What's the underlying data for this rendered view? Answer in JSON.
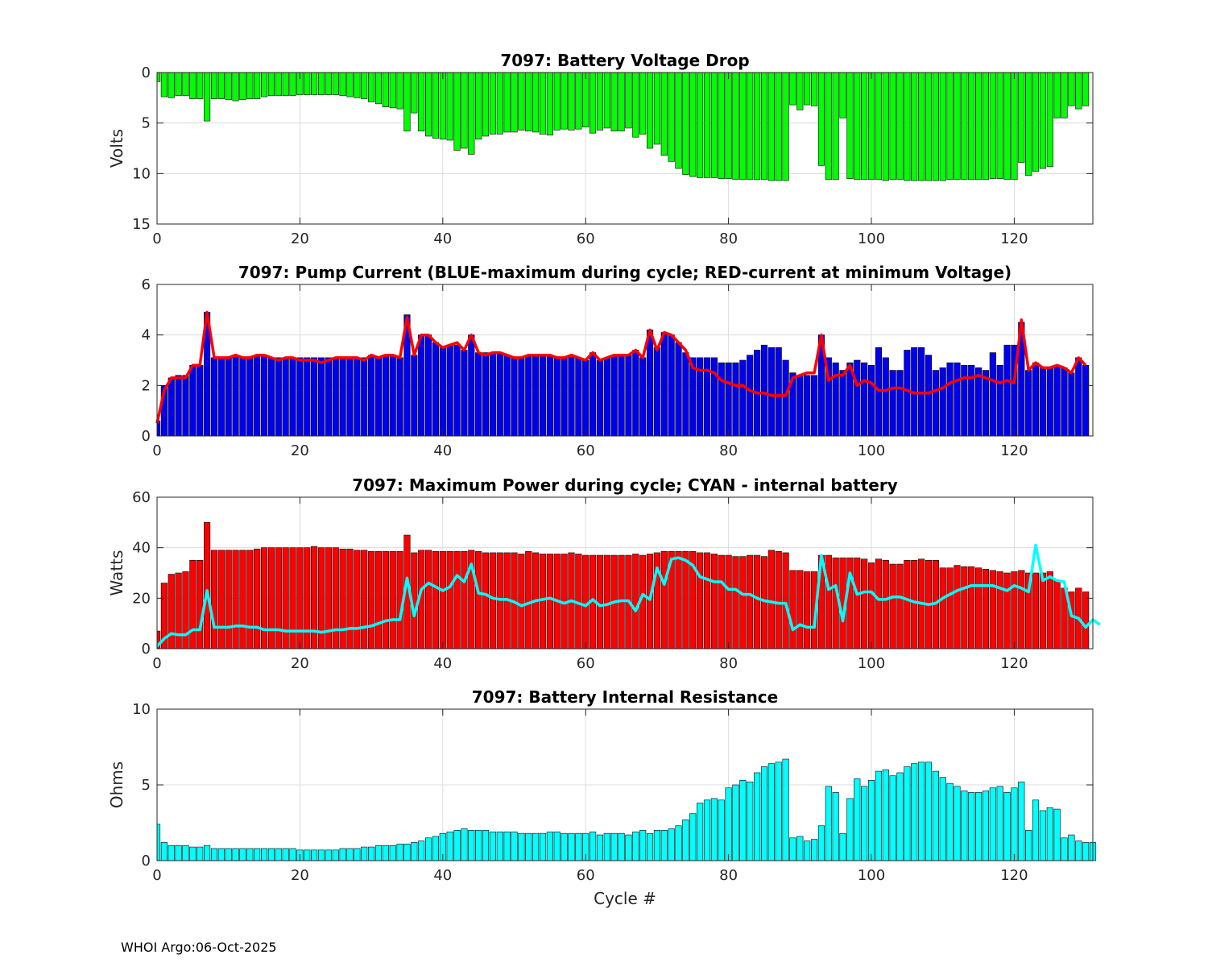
{
  "footer": "WHOI Argo:06-Oct-2025",
  "chart_data": [
    {
      "type": "bar",
      "title": "7097: Battery Voltage Drop",
      "xlabel": "",
      "ylabel": "Volts",
      "xlim": [
        0,
        131
      ],
      "ylim": [
        0,
        15
      ],
      "y_reversed": true,
      "xticks": [
        0,
        20,
        40,
        60,
        80,
        100,
        120
      ],
      "yticks": [
        0,
        5,
        10,
        15
      ],
      "grid": true,
      "colors": {
        "bar": "#00ff00"
      },
      "series": [
        {
          "values": [
            0.9,
            2.4,
            2.5,
            2.3,
            2.3,
            2.6,
            2.6,
            4.8,
            2.6,
            2.6,
            2.7,
            2.8,
            2.7,
            2.6,
            2.6,
            2.4,
            2.3,
            2.3,
            2.3,
            2.3,
            2.2,
            2.2,
            2.2,
            2.2,
            2.2,
            2.2,
            2.3,
            2.4,
            2.5,
            2.6,
            2.9,
            3.1,
            3.4,
            3.5,
            3.6,
            5.8,
            4.0,
            5.8,
            6.3,
            6.5,
            6.6,
            6.7,
            7.7,
            7.5,
            8.1,
            6.6,
            6.3,
            6.1,
            6.1,
            5.9,
            5.9,
            5.7,
            5.8,
            5.9,
            6.1,
            6.2,
            5.7,
            5.6,
            5.7,
            5.6,
            5.4,
            6.0,
            5.7,
            5.5,
            5.8,
            5.8,
            5.5,
            6.4,
            6.1,
            7.5,
            7.1,
            8.2,
            8.8,
            9.5,
            10.1,
            10.3,
            10.4,
            10.4,
            10.4,
            10.5,
            10.5,
            10.6,
            10.6,
            10.6,
            10.6,
            10.6,
            10.7,
            10.7,
            10.7,
            3.2,
            3.7,
            3.2,
            3.3,
            9.2,
            10.6,
            10.6,
            4.5,
            10.5,
            10.6,
            10.6,
            10.6,
            10.6,
            10.7,
            10.6,
            10.6,
            10.7,
            10.7,
            10.7,
            10.7,
            10.7,
            10.7,
            10.6,
            10.6,
            10.6,
            10.6,
            10.6,
            10.6,
            10.5,
            10.5,
            10.6,
            10.6,
            8.9,
            10.2,
            9.8,
            9.5,
            9.3,
            4.5,
            4.5,
            3.3,
            3.6,
            3.3
          ]
        }
      ]
    },
    {
      "type": "bar",
      "title": "7097: Pump Current (BLUE-maximum during cycle; RED-current at minimum Voltage)",
      "xlabel": "",
      "ylabel": "",
      "xlim": [
        0,
        131
      ],
      "ylim": [
        0,
        6
      ],
      "xticks": [
        0,
        20,
        40,
        60,
        80,
        100,
        120
      ],
      "yticks": [
        0,
        2,
        4,
        6
      ],
      "grid": true,
      "colors": {
        "bar": "#0000ee",
        "line": "#ff0000"
      },
      "series": [
        {
          "values": [
            0.6,
            2.0,
            2.3,
            2.4,
            2.4,
            2.8,
            2.8,
            4.9,
            3.1,
            3.1,
            3.1,
            3.2,
            3.1,
            3.1,
            3.2,
            3.2,
            3.1,
            3.1,
            3.1,
            3.1,
            3.1,
            3.1,
            3.1,
            3.1,
            3.1,
            3.1,
            3.1,
            3.1,
            3.1,
            3.1,
            3.2,
            3.1,
            3.2,
            3.2,
            3.1,
            4.8,
            3.2,
            4.0,
            4.0,
            3.7,
            3.5,
            3.6,
            3.6,
            3.4,
            4.0,
            3.3,
            3.3,
            3.3,
            3.3,
            3.2,
            3.1,
            3.1,
            3.2,
            3.2,
            3.2,
            3.2,
            3.1,
            3.1,
            3.2,
            3.1,
            3.0,
            3.3,
            3.0,
            3.1,
            3.2,
            3.2,
            3.2,
            3.4,
            3.1,
            4.2,
            3.5,
            4.1,
            4.0,
            3.7,
            3.3,
            3.1,
            3.1,
            3.1,
            3.1,
            2.9,
            2.9,
            2.9,
            3.0,
            3.2,
            3.4,
            3.6,
            3.5,
            3.5,
            3.0,
            2.5,
            2.4,
            2.4,
            2.4,
            4.0,
            3.1,
            2.9,
            2.6,
            2.9,
            3.0,
            2.9,
            2.8,
            3.5,
            3.1,
            2.6,
            2.6,
            3.4,
            3.5,
            3.5,
            3.2,
            2.6,
            2.7,
            2.9,
            2.9,
            2.8,
            2.8,
            2.7,
            2.6,
            3.3,
            2.8,
            3.6,
            3.6,
            4.5,
            2.6,
            2.9,
            2.7,
            2.7,
            2.8,
            2.7,
            2.5,
            3.1,
            2.8
          ]
        },
        {
          "type": "line",
          "values": [
            0.5,
            1.8,
            2.3,
            2.3,
            2.3,
            2.8,
            2.8,
            4.9,
            3.1,
            3.1,
            3.1,
            3.2,
            3.1,
            3.1,
            3.2,
            3.2,
            3.1,
            3.0,
            3.1,
            3.1,
            3.0,
            3.0,
            3.0,
            2.9,
            3.0,
            3.1,
            3.1,
            3.1,
            3.1,
            3.0,
            3.2,
            3.1,
            3.2,
            3.2,
            3.1,
            4.7,
            3.2,
            4.0,
            4.0,
            3.7,
            3.5,
            3.6,
            3.7,
            3.4,
            4.0,
            3.3,
            3.2,
            3.3,
            3.3,
            3.2,
            3.1,
            3.1,
            3.2,
            3.2,
            3.2,
            3.2,
            3.1,
            3.1,
            3.2,
            3.1,
            3.0,
            3.3,
            3.0,
            3.1,
            3.2,
            3.2,
            3.2,
            3.4,
            3.1,
            4.2,
            3.4,
            4.1,
            4.0,
            3.7,
            3.4,
            2.7,
            2.6,
            2.6,
            2.5,
            2.2,
            2.1,
            2.0,
            2.0,
            1.8,
            1.7,
            1.7,
            1.6,
            1.6,
            1.6,
            2.3,
            2.4,
            2.5,
            2.5,
            4.0,
            2.2,
            2.4,
            2.4,
            2.8,
            2.0,
            2.2,
            2.1,
            1.8,
            1.8,
            1.9,
            1.9,
            1.8,
            1.7,
            1.7,
            1.7,
            1.8,
            1.9,
            2.1,
            2.2,
            2.3,
            2.3,
            2.4,
            2.3,
            2.2,
            2.1,
            2.2,
            2.1,
            4.6,
            2.6,
            2.9,
            2.7,
            2.7,
            2.8,
            2.7,
            2.5,
            3.1,
            2.8
          ]
        }
      ]
    },
    {
      "type": "bar",
      "title": "7097: Maximum Power during cycle; CYAN - internal battery",
      "xlabel": "",
      "ylabel": "Watts",
      "xlim": [
        0,
        131
      ],
      "ylim": [
        0,
        60
      ],
      "xticks": [
        0,
        20,
        40,
        60,
        80,
        100,
        120
      ],
      "yticks": [
        0,
        20,
        40,
        60
      ],
      "grid": true,
      "colors": {
        "bar": "#ff0000",
        "line": "#00ffff"
      },
      "series": [
        {
          "values": [
            7,
            26,
            29.5,
            30,
            30.5,
            35,
            35,
            50,
            39,
            39,
            39,
            39,
            39,
            39,
            39.5,
            40,
            40,
            40,
            40,
            40,
            40,
            40,
            40.5,
            40,
            40,
            40,
            39.5,
            39.5,
            39,
            39,
            38.5,
            38.5,
            38.5,
            38.5,
            38.5,
            45,
            38,
            39,
            39,
            38.5,
            38.5,
            38.5,
            38.5,
            38.5,
            39,
            38.5,
            38,
            38,
            38,
            38,
            38,
            37.5,
            38.5,
            38,
            37.5,
            37.5,
            37.5,
            37.5,
            38,
            37.5,
            37,
            37,
            37,
            37,
            37,
            37,
            37,
            37.5,
            37,
            37.5,
            38,
            38.5,
            38.5,
            38.5,
            38.5,
            38.5,
            38,
            38,
            37.5,
            37,
            37,
            36.5,
            36.5,
            37,
            37,
            36.5,
            39,
            38.5,
            38,
            31,
            31,
            30.5,
            30.5,
            37,
            37,
            36,
            36,
            36,
            36,
            35.5,
            34,
            35.5,
            35,
            33.5,
            33.5,
            35,
            35,
            35.5,
            35,
            35,
            32,
            32,
            33,
            32.5,
            32.5,
            32,
            31.5,
            31,
            30.5,
            30,
            30.5,
            31,
            30,
            30,
            30,
            30.5,
            27,
            24,
            22.5,
            24,
            22.5
          ]
        },
        {
          "type": "line",
          "values": [
            1,
            4,
            6,
            5.5,
            5.5,
            7.5,
            7.5,
            23,
            8.5,
            8.5,
            8.5,
            9,
            9,
            8.5,
            8.5,
            7.5,
            7.5,
            7.5,
            7,
            7,
            7,
            7,
            7,
            6.5,
            7,
            7.5,
            7.5,
            8,
            8,
            8.5,
            9,
            10,
            11,
            11.5,
            11.5,
            28,
            13,
            23.5,
            26,
            24.5,
            23,
            24.5,
            29,
            26.5,
            33.5,
            22,
            21.5,
            20,
            19.5,
            19.5,
            18.5,
            17,
            18,
            19,
            19.5,
            20,
            19,
            18,
            19,
            18,
            17,
            19.5,
            17,
            17.5,
            18.5,
            19,
            19,
            15,
            21.5,
            19.5,
            32,
            25.5,
            35.5,
            36,
            35,
            33,
            28.5,
            27.5,
            26.5,
            26.5,
            23.5,
            23.5,
            21.5,
            21.5,
            20,
            19,
            18.5,
            18,
            18,
            7.5,
            9.5,
            8.5,
            8.5,
            37,
            23.5,
            25,
            11,
            30,
            21.5,
            22.5,
            22.5,
            19.5,
            19.5,
            20.5,
            20.5,
            19.5,
            18.5,
            18,
            17.5,
            18,
            20,
            21.5,
            23,
            24,
            25,
            25,
            25,
            25,
            24,
            23,
            25,
            24,
            22.5,
            41,
            27,
            28.5,
            27,
            26.5,
            13,
            12,
            8.5,
            11.5,
            9.5
          ]
        }
      ]
    },
    {
      "type": "bar",
      "title": "7097: Battery Internal Resistance",
      "xlabel": "Cycle #",
      "ylabel": "Ohms",
      "xlim": [
        0,
        131
      ],
      "ylim": [
        0,
        10
      ],
      "xticks": [
        0,
        20,
        40,
        60,
        80,
        100,
        120
      ],
      "yticks": [
        0,
        5,
        10
      ],
      "grid": true,
      "colors": {
        "bar": "#00ffff"
      },
      "series": [
        {
          "values": [
            2.4,
            1.2,
            1.0,
            1.0,
            1.0,
            0.9,
            0.9,
            1.0,
            0.8,
            0.8,
            0.8,
            0.8,
            0.8,
            0.8,
            0.8,
            0.8,
            0.8,
            0.8,
            0.8,
            0.8,
            0.7,
            0.7,
            0.7,
            0.7,
            0.7,
            0.7,
            0.8,
            0.8,
            0.8,
            0.9,
            0.9,
            1.0,
            1.0,
            1.0,
            1.1,
            1.1,
            1.2,
            1.3,
            1.5,
            1.6,
            1.8,
            1.9,
            2.0,
            2.1,
            2.0,
            2.0,
            2.0,
            1.9,
            1.9,
            1.9,
            1.9,
            1.8,
            1.8,
            1.8,
            1.8,
            1.9,
            1.9,
            1.8,
            1.8,
            1.8,
            1.8,
            1.9,
            1.7,
            1.8,
            1.8,
            1.8,
            1.7,
            1.9,
            2.0,
            1.8,
            2.0,
            2.0,
            2.1,
            2.3,
            2.7,
            3.1,
            3.8,
            4.0,
            4.1,
            4.0,
            4.8,
            5.0,
            5.3,
            5.2,
            5.8,
            6.2,
            6.4,
            6.5,
            6.7,
            1.5,
            1.6,
            1.3,
            1.4,
            2.3,
            4.9,
            4.5,
            1.8,
            4.1,
            5.4,
            4.9,
            5.3,
            5.9,
            6.0,
            5.6,
            5.8,
            6.2,
            6.4,
            6.5,
            6.5,
            5.9,
            5.5,
            5.1,
            4.9,
            4.6,
            4.5,
            4.5,
            4.6,
            4.8,
            4.9,
            4.5,
            4.8,
            5.2,
            2.0,
            4.0,
            3.3,
            3.5,
            3.4,
            1.5,
            1.7,
            1.3,
            1.2,
            1.2
          ]
        }
      ]
    }
  ]
}
